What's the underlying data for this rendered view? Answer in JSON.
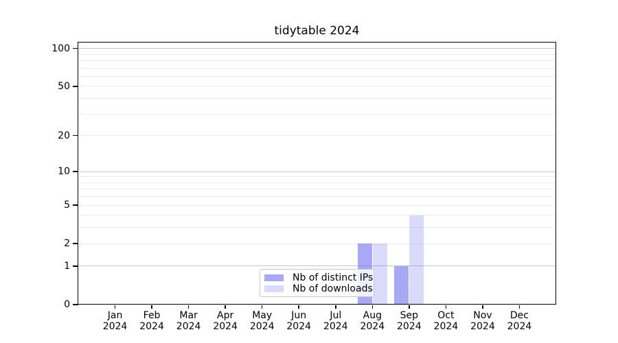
{
  "chart_data": {
    "type": "bar",
    "title": "tidytable 2024",
    "categories": [
      {
        "month": "Jan",
        "year": "2024"
      },
      {
        "month": "Feb",
        "year": "2024"
      },
      {
        "month": "Mar",
        "year": "2024"
      },
      {
        "month": "Apr",
        "year": "2024"
      },
      {
        "month": "May",
        "year": "2024"
      },
      {
        "month": "Jun",
        "year": "2024"
      },
      {
        "month": "Jul",
        "year": "2024"
      },
      {
        "month": "Aug",
        "year": "2024"
      },
      {
        "month": "Sep",
        "year": "2024"
      },
      {
        "month": "Oct",
        "year": "2024"
      },
      {
        "month": "Nov",
        "year": "2024"
      },
      {
        "month": "Dec",
        "year": "2024"
      }
    ],
    "series": [
      {
        "key": "distinct-ips",
        "name": "Nb of distinct IPs",
        "color": "rgba(99,99,237,0.56)",
        "values": [
          0,
          0,
          0,
          0,
          0,
          0,
          0,
          2,
          1,
          0,
          0,
          0
        ]
      },
      {
        "key": "downloads",
        "name": "Nb of downloads",
        "color": "rgba(99,99,237,0.235)",
        "values": [
          0,
          0,
          0,
          0,
          0,
          0,
          0,
          2,
          4,
          0,
          0,
          0
        ]
      }
    ],
    "y_axis": {
      "scale": "log1p",
      "tick_values": [
        0,
        1,
        2,
        5,
        10,
        20,
        50,
        100
      ],
      "range": [
        0,
        113
      ]
    },
    "x_axis": {
      "label_format": "month over year"
    },
    "gridlines": {
      "minor": [
        2,
        3,
        4,
        5,
        6,
        7,
        8,
        9,
        20,
        30,
        40,
        50,
        60,
        70,
        80,
        90
      ],
      "major": [
        1,
        10,
        100
      ]
    },
    "legend": {
      "position": "bottom-center",
      "entries": [
        "Nb of distinct IPs",
        "Nb of downloads"
      ]
    },
    "colors": {
      "grid_minor": "#ebebeb",
      "grid_major": "#c8c8c8",
      "axis": "#000000",
      "background": "#ffffff",
      "legend_border": "#c9c9c9"
    }
  }
}
